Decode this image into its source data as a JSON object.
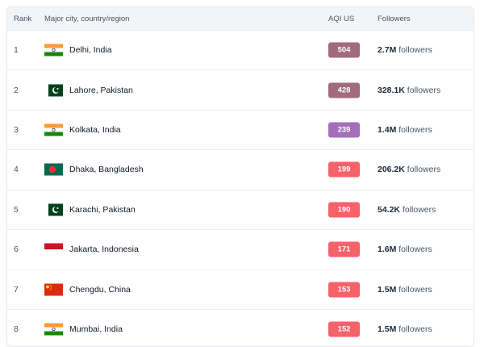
{
  "header": {
    "rank": "Rank",
    "city": "Major city, country/region",
    "aqi": "AQI US",
    "followers": "Followers"
  },
  "followers_suffix": "followers",
  "rows": [
    {
      "rank": "1",
      "city": "Delhi, India",
      "flag": "india",
      "aqi": "504",
      "color": "#a26a7e",
      "followers": "2.7M"
    },
    {
      "rank": "2",
      "city": "Lahore, Pakistan",
      "flag": "pakistan",
      "aqi": "428",
      "color": "#a26a7e",
      "followers": "328.1K"
    },
    {
      "rank": "3",
      "city": "Kolkata, India",
      "flag": "india",
      "aqi": "239",
      "color": "#a36fb9",
      "followers": "1.4M"
    },
    {
      "rank": "4",
      "city": "Dhaka, Bangladesh",
      "flag": "bangladesh",
      "aqi": "199",
      "color": "#f6616a",
      "followers": "206.2K"
    },
    {
      "rank": "5",
      "city": "Karachi, Pakistan",
      "flag": "pakistan",
      "aqi": "190",
      "color": "#f6616a",
      "followers": "54.2K"
    },
    {
      "rank": "6",
      "city": "Jakarta, Indonesia",
      "flag": "indonesia",
      "aqi": "171",
      "color": "#f6616a",
      "followers": "1.6M"
    },
    {
      "rank": "7",
      "city": "Chengdu, China",
      "flag": "china",
      "aqi": "153",
      "color": "#f6616a",
      "followers": "1.5M"
    },
    {
      "rank": "8",
      "city": "Mumbai, India",
      "flag": "india",
      "aqi": "152",
      "color": "#f6616a",
      "followers": "1.5M"
    }
  ]
}
